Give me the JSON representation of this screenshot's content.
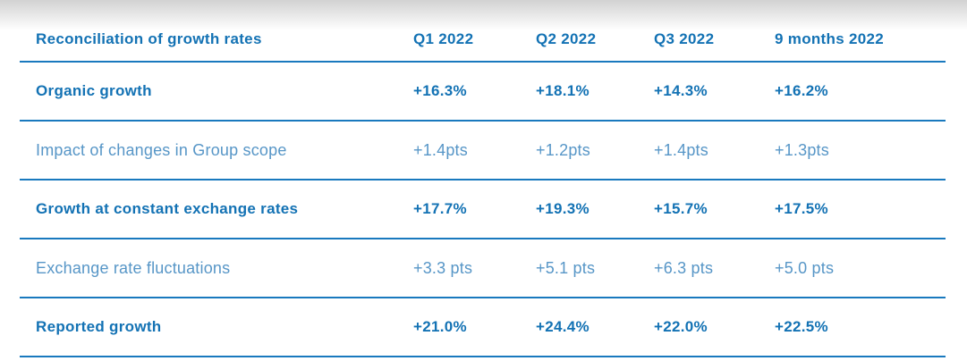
{
  "chart_data": {
    "type": "table",
    "title": "Reconciliation of growth rates",
    "columns": [
      "Q1 2022",
      "Q2 2022",
      "Q3 2022",
      "9 months 2022"
    ],
    "rows": [
      {
        "label": "Organic growth",
        "emphasis": "strong",
        "values": [
          "+16.3%",
          "+18.1%",
          "+14.3%",
          "+16.2%"
        ]
      },
      {
        "label": "Impact of changes in Group scope",
        "emphasis": "light",
        "values": [
          "+1.4pts",
          "+1.2pts",
          "+1.4pts",
          "+1.3pts"
        ]
      },
      {
        "label": "Growth at constant exchange rates",
        "emphasis": "strong",
        "values": [
          "+17.7%",
          "+19.3%",
          "+15.7%",
          "+17.5%"
        ]
      },
      {
        "label": "Exchange rate fluctuations",
        "emphasis": "light",
        "values": [
          "+3.3 pts",
          "+5.1 pts",
          "+6.3 pts",
          "+5.0 pts"
        ]
      },
      {
        "label": "Reported growth",
        "emphasis": "strong",
        "values": [
          "+21.0%",
          "+24.4%",
          "+22.0%",
          "+22.5%"
        ]
      }
    ]
  },
  "colors": {
    "accent": "#1372B4",
    "light_text": "#5796C7",
    "rule": "#1979BE",
    "top_fade": "#d2d2d2"
  }
}
